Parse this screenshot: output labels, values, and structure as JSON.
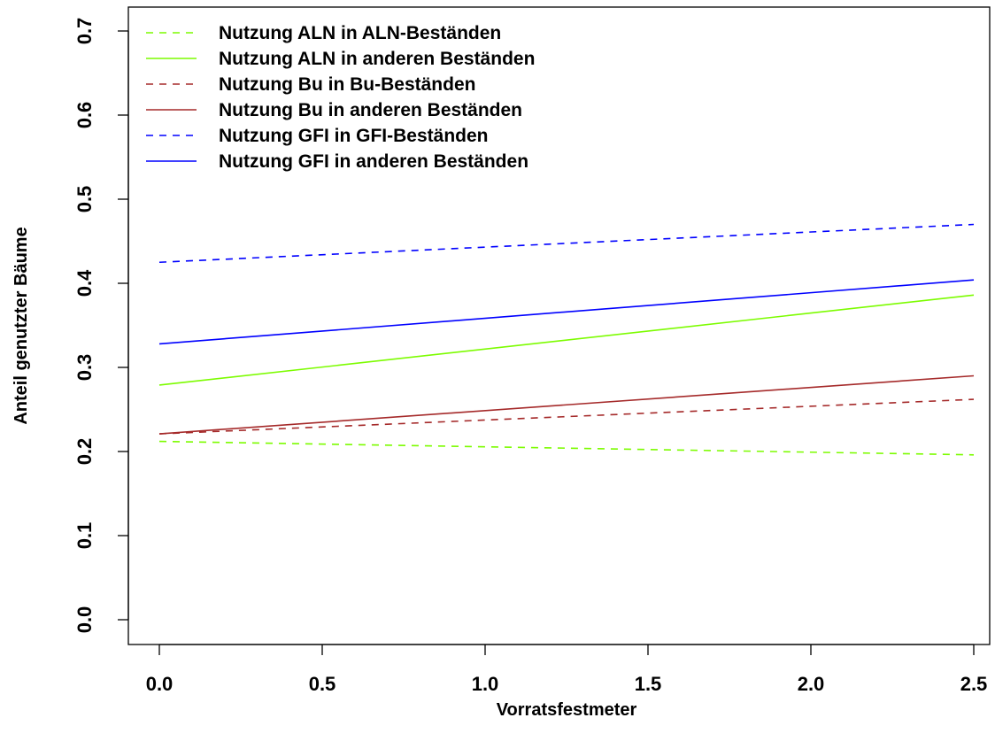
{
  "chart_data": {
    "type": "line",
    "title": "",
    "xlabel": "Vorratsfestmeter",
    "ylabel": "Anteil genutzter Bäume",
    "xlim": [
      0.0,
      2.5
    ],
    "ylim": [
      0.0,
      0.7
    ],
    "x_ticks": [
      "0.0",
      "0.5",
      "1.0",
      "1.5",
      "2.0",
      "2.5"
    ],
    "y_ticks": [
      "0.0",
      "0.1",
      "0.2",
      "0.3",
      "0.4",
      "0.5",
      "0.6",
      "0.7"
    ],
    "grid": false,
    "legend_position": "top-left",
    "series": [
      {
        "name": "Nutzung ALN in ALN-Beständen",
        "color": "#7CFC00",
        "dash": "dashed",
        "x": [
          0.0,
          2.5
        ],
        "y": [
          0.212,
          0.196
        ]
      },
      {
        "name": "Nutzung ALN in anderen Beständen",
        "color": "#7CFC00",
        "dash": "solid",
        "x": [
          0.0,
          2.5
        ],
        "y": [
          0.279,
          0.386
        ]
      },
      {
        "name": "Nutzung Bu in Bu-Beständen",
        "color": "#A52A2A",
        "dash": "dashed",
        "x": [
          0.0,
          2.5
        ],
        "y": [
          0.221,
          0.262
        ]
      },
      {
        "name": "Nutzung Bu in anderen Beständen",
        "color": "#A52A2A",
        "dash": "solid",
        "x": [
          0.0,
          2.5
        ],
        "y": [
          0.221,
          0.29
        ]
      },
      {
        "name": "Nutzung GFI in GFI-Beständen",
        "color": "#0000FF",
        "dash": "dashed",
        "x": [
          0.0,
          2.5
        ],
        "y": [
          0.425,
          0.47
        ]
      },
      {
        "name": "Nutzung GFI in anderen Beständen",
        "color": "#0000FF",
        "dash": "solid",
        "x": [
          0.0,
          2.5
        ],
        "y": [
          0.328,
          0.404
        ]
      }
    ]
  }
}
